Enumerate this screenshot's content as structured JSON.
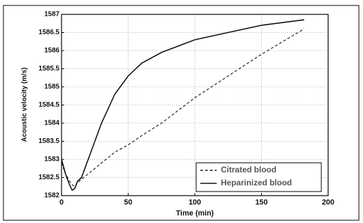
{
  "chart_data": {
    "type": "line",
    "x_label": "Time (min)",
    "y_label": "Acoustic velocity (m/s)",
    "x": [
      0,
      3,
      6,
      8,
      10,
      12,
      15,
      20,
      25,
      30,
      40,
      50,
      60,
      75,
      100,
      125,
      150,
      182
    ],
    "series": [
      {
        "name": "Citrated blood",
        "color": "#222222",
        "dash": true,
        "values": [
          1582.9,
          1582.6,
          1582.4,
          1582.3,
          1582.25,
          1582.35,
          1582.45,
          1582.6,
          1582.75,
          1582.9,
          1583.2,
          1583.4,
          1583.65,
          1584.0,
          1584.7,
          1585.3,
          1585.9,
          1586.6
        ]
      },
      {
        "name": "Heparinized blood",
        "color": "#111111",
        "dash": false,
        "values": [
          1583,
          1582.6,
          1582.3,
          1582.15,
          1582.2,
          1582.4,
          1582.5,
          1583.0,
          1583.5,
          1584.0,
          1584.8,
          1585.3,
          1585.65,
          1585.95,
          1586.3,
          1586.5,
          1586.7,
          1586.85
        ]
      }
    ],
    "xlim": [
      0,
      200
    ],
    "xticks": [
      0,
      50,
      100,
      150,
      200
    ],
    "ylim": [
      1582,
      1587
    ],
    "yticks": [
      1582,
      1582.5,
      1583,
      1583.5,
      1584,
      1584.5,
      1585,
      1585.5,
      1586,
      1586.5,
      1587
    ],
    "grid": true,
    "legend": "lower right"
  }
}
